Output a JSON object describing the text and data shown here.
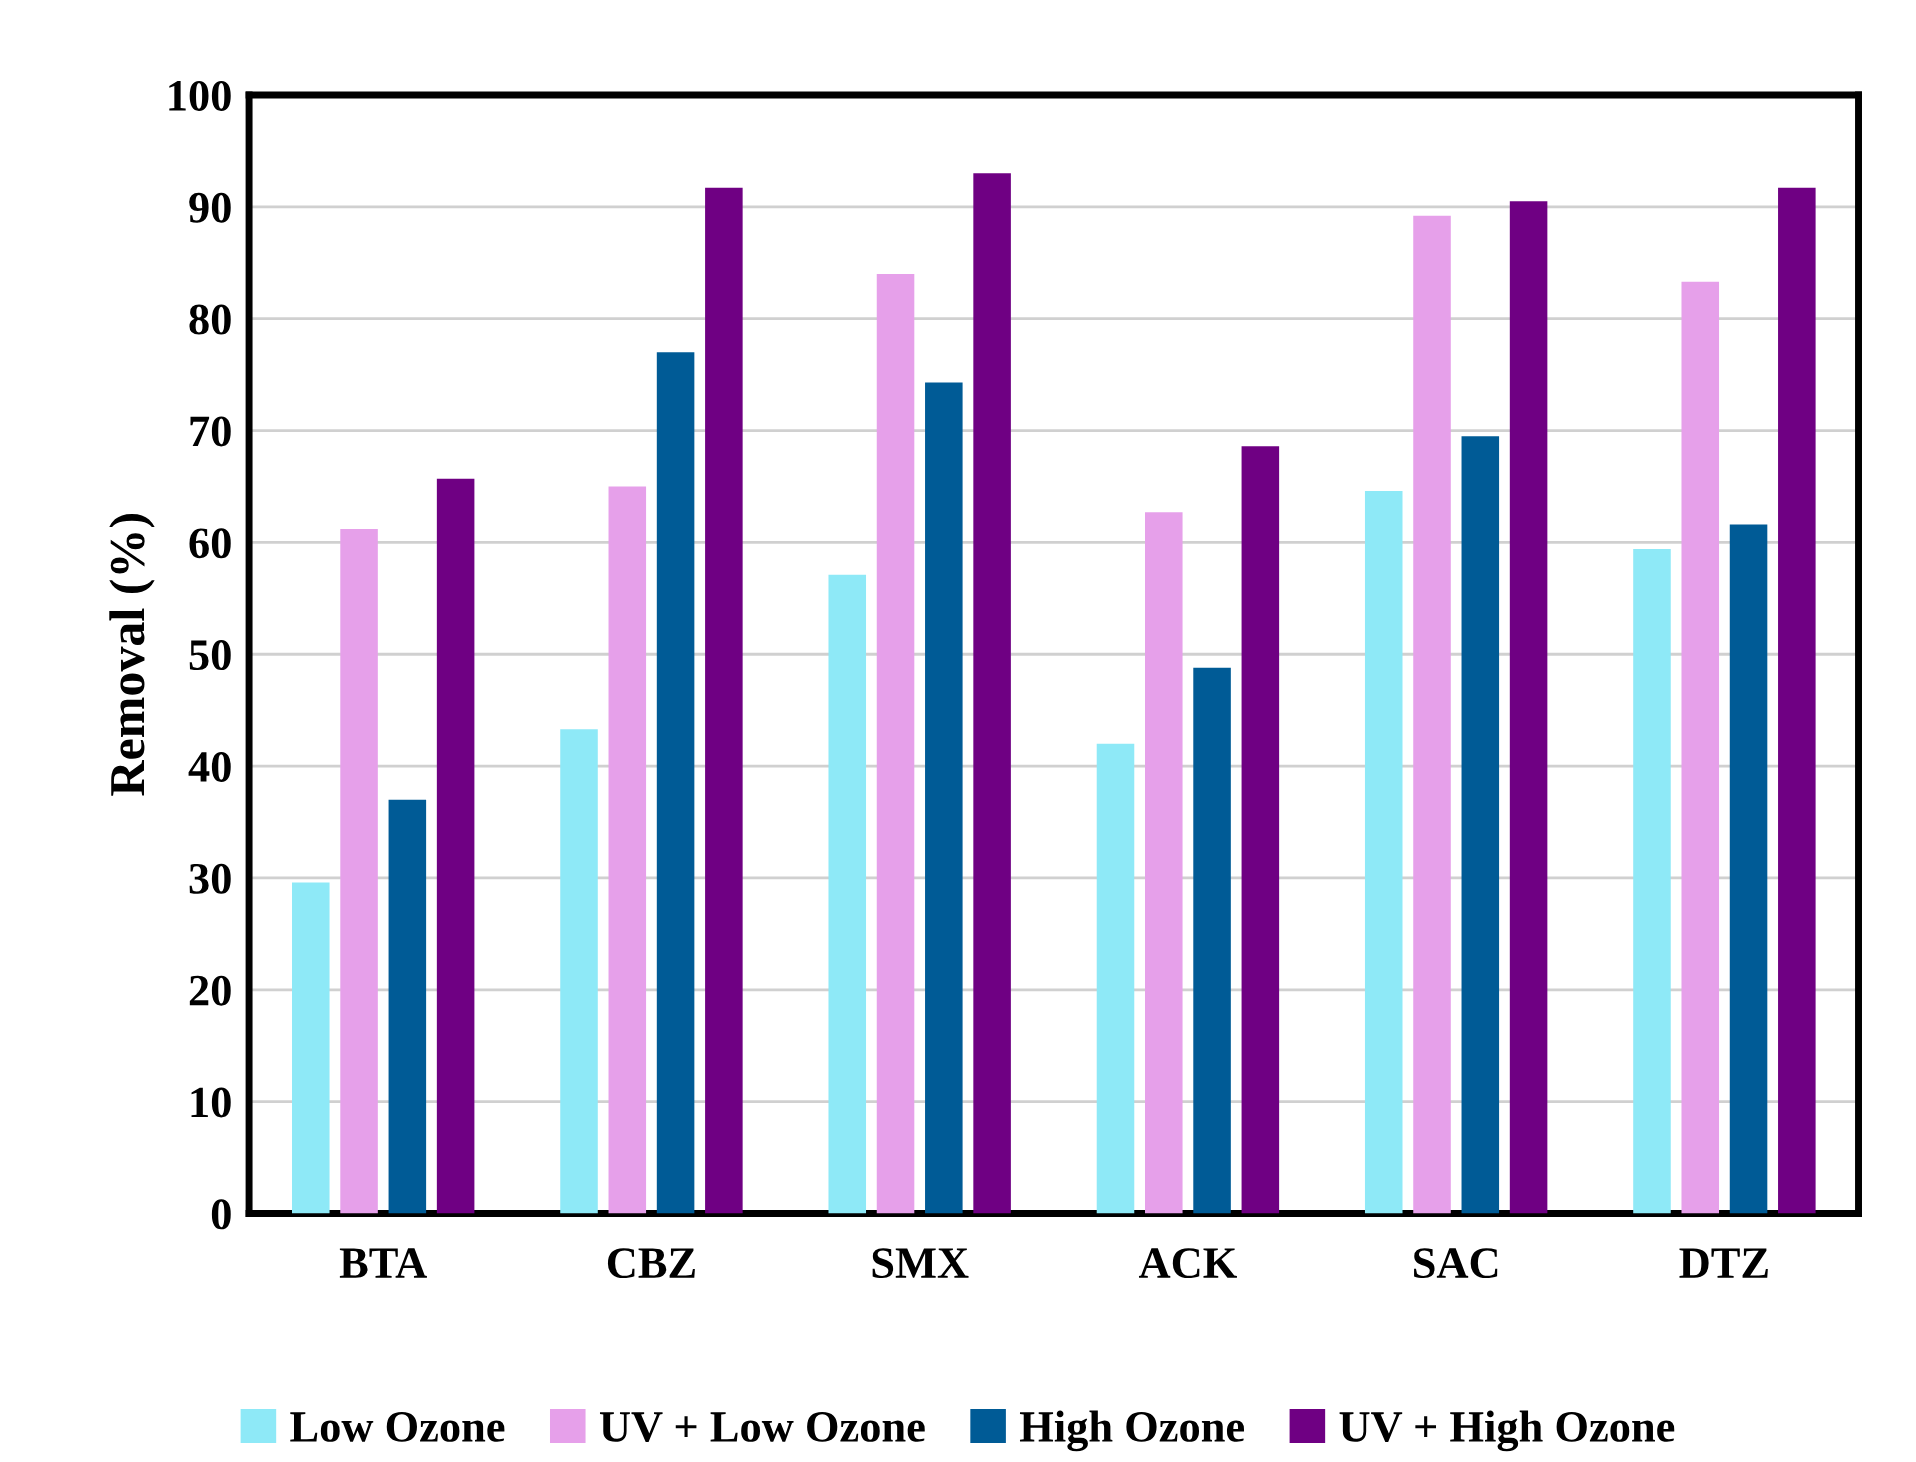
{
  "chart_data": {
    "type": "bar",
    "ylabel": "Removal (%)",
    "categories": [
      "BTA",
      "CBZ",
      "SMX",
      "ACK",
      "SAC",
      "DTZ"
    ],
    "series": [
      {
        "name": "Low Ozone",
        "color": "#8ee9f7",
        "values": [
          29.6,
          43.3,
          57.1,
          42.0,
          64.6,
          59.4
        ]
      },
      {
        "name": "UV + Low Ozone",
        "color": "#e6a0ea",
        "values": [
          61.2,
          65.0,
          84.0,
          62.7,
          89.2,
          83.3
        ]
      },
      {
        "name": "High Ozone",
        "color": "#005b96",
        "values": [
          37.0,
          77.0,
          74.3,
          48.8,
          69.5,
          61.6
        ]
      },
      {
        "name": "UV + High Ozone",
        "color": "#6f0083",
        "values": [
          65.7,
          91.7,
          93.0,
          68.6,
          90.5,
          91.7
        ]
      }
    ],
    "ylim": [
      0,
      100
    ],
    "yticks": [
      0,
      10,
      20,
      30,
      40,
      50,
      60,
      70,
      80,
      90,
      100
    ],
    "grid": "y",
    "legend": "bottom"
  }
}
